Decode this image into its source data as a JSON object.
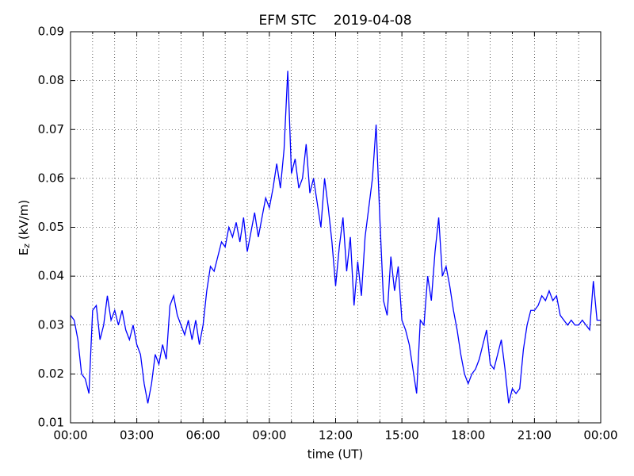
{
  "chart_data": {
    "type": "line",
    "title": "EFM STC    2019-04-08",
    "xlabel": "time (UT)",
    "ylabel": [
      "E",
      "z",
      " (kV/m)"
    ],
    "x": [
      0,
      10,
      20,
      30,
      40,
      50,
      60,
      70,
      80,
      90,
      100,
      110,
      120,
      130,
      140,
      150,
      160,
      170,
      180,
      190,
      200,
      210,
      220,
      230,
      240,
      250,
      260,
      270,
      280,
      290,
      300,
      310,
      320,
      330,
      340,
      350,
      360,
      370,
      380,
      390,
      400,
      410,
      420,
      430,
      440,
      450,
      460,
      470,
      480,
      490,
      500,
      510,
      520,
      530,
      540,
      550,
      560,
      570,
      580,
      590,
      600,
      610,
      620,
      630,
      640,
      650,
      660,
      670,
      680,
      690,
      700,
      710,
      720,
      730,
      740,
      750,
      760,
      770,
      780,
      790,
      800,
      810,
      820,
      830,
      840,
      850,
      860,
      870,
      880,
      890,
      900,
      910,
      920,
      930,
      940,
      950,
      960,
      970,
      980,
      990,
      1000,
      1010,
      1020,
      1030,
      1040,
      1050,
      1060,
      1070,
      1080,
      1090,
      1100,
      1110,
      1120,
      1130,
      1140,
      1150,
      1160,
      1170,
      1180,
      1190,
      1200,
      1210,
      1220,
      1230,
      1240,
      1250,
      1260,
      1270,
      1280,
      1290,
      1300,
      1310,
      1320,
      1330,
      1340,
      1350,
      1360,
      1370,
      1380,
      1390,
      1400,
      1410,
      1420,
      1430,
      1440
    ],
    "values": [
      0.032,
      0.031,
      0.027,
      0.02,
      0.019,
      0.016,
      0.033,
      0.034,
      0.027,
      0.03,
      0.036,
      0.031,
      0.033,
      0.03,
      0.033,
      0.029,
      0.027,
      0.03,
      0.026,
      0.024,
      0.018,
      0.014,
      0.018,
      0.024,
      0.022,
      0.026,
      0.023,
      0.034,
      0.036,
      0.032,
      0.03,
      0.028,
      0.031,
      0.027,
      0.031,
      0.026,
      0.03,
      0.037,
      0.042,
      0.041,
      0.044,
      0.047,
      0.046,
      0.05,
      0.048,
      0.051,
      0.047,
      0.052,
      0.045,
      0.049,
      0.053,
      0.048,
      0.052,
      0.056,
      0.054,
      0.058,
      0.063,
      0.058,
      0.066,
      0.082,
      0.061,
      0.064,
      0.058,
      0.06,
      0.067,
      0.057,
      0.06,
      0.055,
      0.05,
      0.06,
      0.054,
      0.047,
      0.038,
      0.046,
      0.052,
      0.041,
      0.048,
      0.034,
      0.043,
      0.036,
      0.048,
      0.054,
      0.06,
      0.071,
      0.052,
      0.035,
      0.032,
      0.044,
      0.037,
      0.042,
      0.031,
      0.029,
      0.026,
      0.021,
      0.016,
      0.031,
      0.03,
      0.04,
      0.035,
      0.045,
      0.052,
      0.04,
      0.042,
      0.038,
      0.033,
      0.029,
      0.024,
      0.02,
      0.018,
      0.02,
      0.021,
      0.023,
      0.026,
      0.029,
      0.022,
      0.021,
      0.024,
      0.027,
      0.021,
      0.014,
      0.017,
      0.016,
      0.017,
      0.025,
      0.03,
      0.033,
      0.033,
      0.034,
      0.036,
      0.035,
      0.037,
      0.035,
      0.036,
      0.032,
      0.031,
      0.03,
      0.031,
      0.03,
      0.03,
      0.031,
      0.03,
      0.029,
      0.039,
      0.031,
      0.031
    ],
    "color": "#0000ff",
    "xlim": [
      0,
      1440
    ],
    "xticks": [
      {
        "value": 0,
        "label": "00:00"
      },
      {
        "value": 180,
        "label": "03:00"
      },
      {
        "value": 360,
        "label": "06:00"
      },
      {
        "value": 540,
        "label": "09:00"
      },
      {
        "value": 720,
        "label": "12:00"
      },
      {
        "value": 900,
        "label": "15:00"
      },
      {
        "value": 1080,
        "label": "18:00"
      },
      {
        "value": 1260,
        "label": "21:00"
      },
      {
        "value": 1440,
        "label": "00:00"
      }
    ],
    "xminorticks": [
      60,
      120,
      240,
      300,
      420,
      480,
      600,
      660,
      780,
      840,
      960,
      1020,
      1140,
      1200,
      1320,
      1380
    ],
    "ylim": [
      0.01,
      0.09
    ],
    "yticks": [
      0.01,
      0.02,
      0.03,
      0.04,
      0.05,
      0.06,
      0.07,
      0.08,
      0.09
    ],
    "grid": true
  }
}
